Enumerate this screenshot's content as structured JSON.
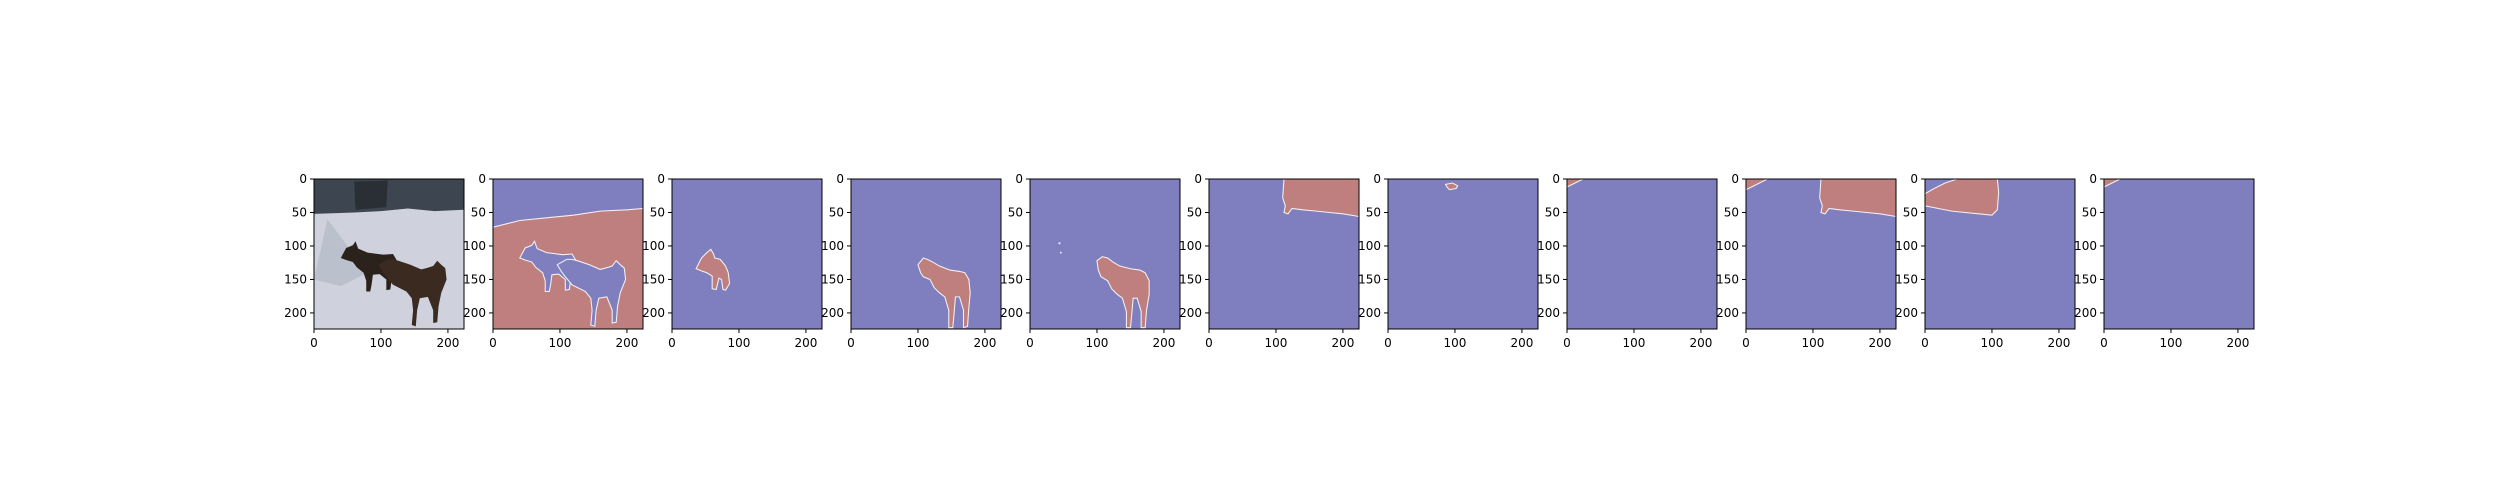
{
  "figure": {
    "panel_count": 11,
    "colors": {
      "background": "#7f7fbf",
      "segment": "#bf7f7f",
      "edge": "#f2f0f0",
      "snow": "#cfd2dc",
      "sky": "#3d4650",
      "dog": "#2c221c"
    }
  },
  "chart_data": {
    "type": "image-grid",
    "description_of_panels": [
      "photo",
      "mask",
      "mask",
      "mask",
      "mask",
      "mask",
      "mask",
      "mask",
      "mask",
      "mask",
      "mask"
    ],
    "x_ticks": [
      "0",
      "100",
      "200"
    ],
    "y_ticks": [
      "0",
      "50",
      "100",
      "150",
      "200"
    ],
    "xlim": [
      0,
      224
    ],
    "ylim": [
      224,
      0
    ],
    "title": "",
    "xlabel": "",
    "ylabel": ""
  }
}
